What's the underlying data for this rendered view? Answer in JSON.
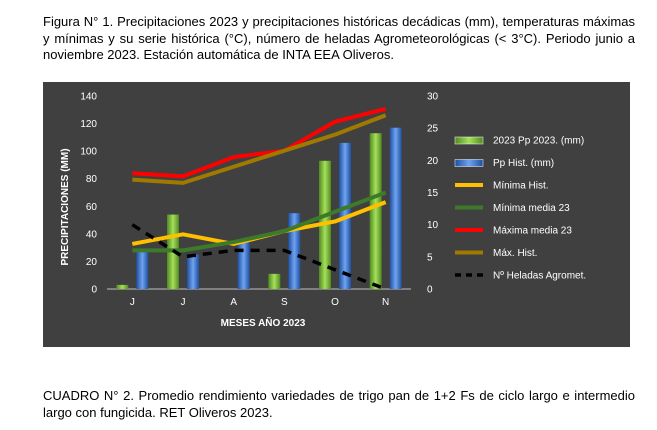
{
  "figure_caption": "Figura N° 1. Precipitaciones 2023 y precipitaciones históricas decádicas (mm), temperaturas máximas y mínimas y su serie histórica (°C), número de heladas Agrometeorológicas (< 3°C). Periodo junio a noviembre 2023. Estación automática de INTA EEA Oliveros.",
  "table_caption": "CUADRO N° 2. Promedio rendimiento variedades de trigo pan de 1+2 Fs de ciclo largo e intermedio largo con fungicida. RET Oliveros 2023.",
  "colors": {
    "background": "#404040",
    "pp_2023": "#7cc242",
    "pp_hist": "#3a76d0",
    "min_hist": "#ffc000",
    "min_media_23": "#3d7a2a",
    "max_media_23": "#ff0000",
    "max_hist": "#a07a00",
    "heladas": "#000000"
  },
  "chart_data": {
    "type": "bar",
    "title": "",
    "xlabel": "MESES AÑO 2023",
    "ylabel": "PRECIPITACIONES (MM)",
    "ylabel_right": "",
    "categories": [
      "J",
      "J",
      "A",
      "S",
      "O",
      "N"
    ],
    "ylim": [
      0,
      140
    ],
    "yticks": [
      "0",
      "20",
      "40",
      "60",
      "80",
      "100",
      "120",
      "140"
    ],
    "ylim_right": [
      0,
      30
    ],
    "yticks_right": [
      "0",
      "5",
      "10",
      "15",
      "20",
      "25",
      "30"
    ],
    "grid": false,
    "legend_position": "right",
    "series": [
      {
        "name": "2023 Pp 2023. (mm)",
        "type": "bar",
        "axis": "left",
        "color_key": "pp_2023",
        "values": [
          3,
          54,
          0,
          11,
          93,
          113
        ]
      },
      {
        "name": "Pp Hist. (mm)",
        "type": "bar",
        "axis": "left",
        "color_key": "pp_hist",
        "values": [
          28,
          25,
          35,
          55,
          106,
          117
        ]
      },
      {
        "name": "Mínima Hist.",
        "type": "line",
        "axis": "right",
        "color_key": "min_hist",
        "values": [
          7,
          8.5,
          7,
          9,
          10.5,
          13.5
        ]
      },
      {
        "name": "Mínima media 23",
        "type": "line",
        "axis": "right",
        "color_key": "min_media_23",
        "values": [
          6,
          6,
          7.3,
          9,
          12,
          15
        ]
      },
      {
        "name": "Máxima media 23",
        "type": "line",
        "axis": "right",
        "color_key": "max_media_23",
        "values": [
          18,
          17.5,
          20.5,
          21.5,
          26,
          28
        ]
      },
      {
        "name": "Máx. Hist.",
        "type": "line",
        "axis": "right",
        "color_key": "max_hist",
        "values": [
          17,
          16.5,
          19,
          21.5,
          24,
          27
        ]
      },
      {
        "name": "Nº Heladas Agromet.",
        "type": "dash",
        "axis": "right",
        "color_key": "heladas",
        "values": [
          10,
          5,
          6,
          6,
          3,
          0
        ]
      }
    ]
  }
}
